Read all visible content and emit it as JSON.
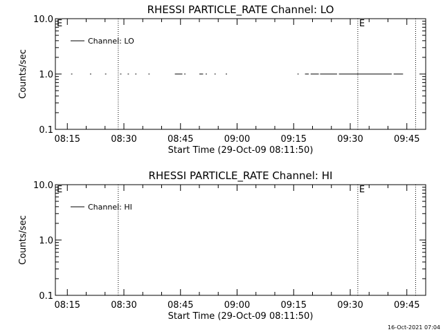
{
  "chart_data": [
    {
      "type": "line",
      "title": "RHESSI PARTICLE_RATE Channel: LO",
      "xlabel": "Start Time (29-Oct-09 08:11:50)",
      "ylabel": "Counts/sec",
      "y_scale": "log",
      "ylim": [
        0.1,
        10.0
      ],
      "y_ticks": [
        "0.1",
        "1.0",
        "10.0"
      ],
      "xlim": [
        "08:11:50",
        "09:50:00"
      ],
      "x_ticks": [
        "08:15",
        "08:30",
        "08:45",
        "09:00",
        "09:15",
        "09:30",
        "09:45"
      ],
      "legend": {
        "label": "Channel: LO",
        "position": "top-left"
      },
      "event_markers": [
        {
          "time": "08:28:30",
          "label": ""
        },
        {
          "time": "09:32:00",
          "label": "E"
        },
        {
          "time": "09:47:20",
          "label": ""
        }
      ],
      "left_marker_label": "E",
      "series": [
        {
          "name": "Channel: LO",
          "segments": [
            {
              "start": "08:16:00",
              "end": "08:16:20",
              "y": 1.0
            },
            {
              "start": "08:21:00",
              "end": "08:21:20",
              "y": 1.0
            },
            {
              "start": "08:25:00",
              "end": "08:25:20",
              "y": 1.0
            },
            {
              "start": "08:29:00",
              "end": "08:29:20",
              "y": 1.0
            },
            {
              "start": "08:31:00",
              "end": "08:31:20",
              "y": 1.0
            },
            {
              "start": "08:33:00",
              "end": "08:33:20",
              "y": 1.0
            },
            {
              "start": "08:36:30",
              "end": "08:36:50",
              "y": 1.0
            },
            {
              "start": "08:43:30",
              "end": "08:45:30",
              "y": 1.0
            },
            {
              "start": "08:46:00",
              "end": "08:46:20",
              "y": 1.0
            },
            {
              "start": "08:50:00",
              "end": "08:51:00",
              "y": 1.0
            },
            {
              "start": "08:51:40",
              "end": "08:52:00",
              "y": 1.0
            },
            {
              "start": "08:54:00",
              "end": "08:54:20",
              "y": 1.0
            },
            {
              "start": "08:57:00",
              "end": "08:57:20",
              "y": 1.0
            },
            {
              "start": "09:16:00",
              "end": "09:16:20",
              "y": 1.0
            },
            {
              "start": "09:18:00",
              "end": "09:19:00",
              "y": 1.0
            },
            {
              "start": "09:19:30",
              "end": "09:21:40",
              "y": 1.0
            },
            {
              "start": "09:22:00",
              "end": "09:26:30",
              "y": 1.0
            },
            {
              "start": "09:27:00",
              "end": "09:41:00",
              "y": 1.0
            },
            {
              "start": "09:41:30",
              "end": "09:44:00",
              "y": 1.0
            }
          ]
        }
      ]
    },
    {
      "type": "line",
      "title": "RHESSI PARTICLE_RATE Channel: HI",
      "xlabel": "Start Time (29-Oct-09 08:11:50)",
      "ylabel": "Counts/sec",
      "y_scale": "log",
      "ylim": [
        0.1,
        10.0
      ],
      "y_ticks": [
        "0.1",
        "1.0",
        "10.0"
      ],
      "xlim": [
        "08:11:50",
        "09:50:00"
      ],
      "x_ticks": [
        "08:15",
        "08:30",
        "08:45",
        "09:00",
        "09:15",
        "09:30",
        "09:45"
      ],
      "legend": {
        "label": "Channel: HI",
        "position": "top-left"
      },
      "event_markers": [
        {
          "time": "08:28:30",
          "label": ""
        },
        {
          "time": "09:32:00",
          "label": "E"
        },
        {
          "time": "09:47:20",
          "label": ""
        }
      ],
      "left_marker_label": "E",
      "series": [
        {
          "name": "Channel: HI",
          "segments": []
        }
      ]
    }
  ],
  "footer": {
    "timestamp": "16-Oct-2021 07:04"
  }
}
